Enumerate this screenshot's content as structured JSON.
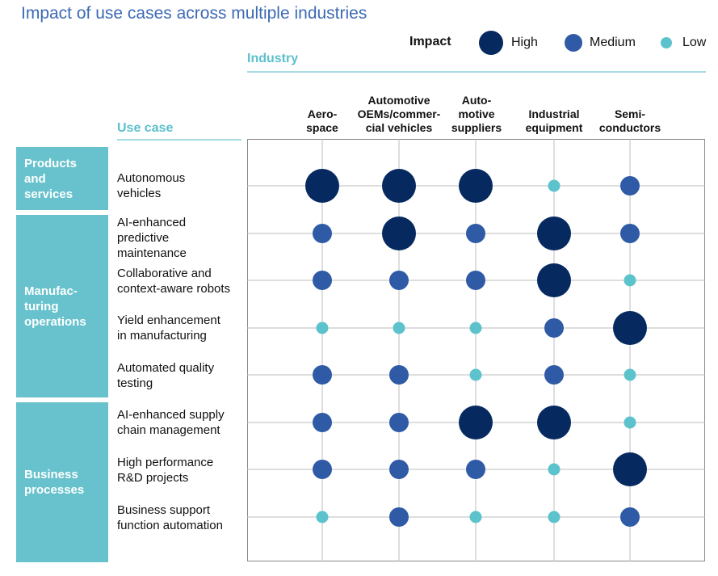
{
  "title": "Impact of use cases across multiple industries",
  "legend": {
    "title": "Impact",
    "items": [
      {
        "label": "High",
        "level": "High"
      },
      {
        "label": "Medium",
        "level": "Medium"
      },
      {
        "label": "Low",
        "level": "Low"
      }
    ]
  },
  "headers": {
    "industry": "Industry",
    "use_case": "Use case"
  },
  "colors": {
    "high": "#062a60",
    "medium": "#2f5aa6",
    "low": "#5cc3cd",
    "group_fill": "#67c2cd",
    "title": "#3d6ab5",
    "grid": "#bdbdbd"
  },
  "groups": [
    {
      "lines": [
        "Products",
        "and",
        "services"
      ]
    },
    {
      "lines": [
        "Manufac-",
        "turing",
        "operations"
      ]
    },
    {
      "lines": [
        "Business",
        "processes"
      ]
    }
  ],
  "chart_data": {
    "type": "scatter",
    "encoding": "bubble size and color encode impact level",
    "columns": [
      {
        "lines": [
          "Aero-",
          "space"
        ]
      },
      {
        "lines": [
          "Automotive",
          "OEMs/commer-",
          "cial vehicles"
        ]
      },
      {
        "lines": [
          "Auto-",
          "motive",
          "suppliers"
        ]
      },
      {
        "lines": [
          "Industrial",
          "equipment"
        ]
      },
      {
        "lines": [
          "Semi-",
          "conductors"
        ]
      }
    ],
    "rows": [
      {
        "lines": [
          "Autonomous",
          "vehicles"
        ],
        "group": 0,
        "values": [
          "High",
          "High",
          "High",
          "Low",
          "Medium"
        ]
      },
      {
        "lines": [
          "AI-enhanced",
          "predictive",
          "maintenance"
        ],
        "group": 1,
        "values": [
          "Medium",
          "High",
          "Medium",
          "High",
          "Medium"
        ]
      },
      {
        "lines": [
          "Collaborative and",
          "context-aware robots"
        ],
        "group": 1,
        "values": [
          "Medium",
          "Medium",
          "Medium",
          "High",
          "Low"
        ]
      },
      {
        "lines": [
          "Yield enhancement",
          "in manufacturing"
        ],
        "group": 1,
        "values": [
          "Low",
          "Low",
          "Low",
          "Medium",
          "High"
        ]
      },
      {
        "lines": [
          "Automated quality",
          "testing"
        ],
        "group": 1,
        "values": [
          "Medium",
          "Medium",
          "Low",
          "Medium",
          "Low"
        ]
      },
      {
        "lines": [
          "AI-enhanced supply",
          "chain management"
        ],
        "group": 2,
        "values": [
          "Medium",
          "Medium",
          "High",
          "High",
          "Low"
        ]
      },
      {
        "lines": [
          "High performance",
          "R&D projects"
        ],
        "group": 2,
        "values": [
          "Medium",
          "Medium",
          "Medium",
          "Low",
          "High"
        ]
      },
      {
        "lines": [
          "Business support",
          "function automation"
        ],
        "group": 2,
        "values": [
          "Low",
          "Medium",
          "Low",
          "Low",
          "Medium"
        ]
      }
    ]
  }
}
